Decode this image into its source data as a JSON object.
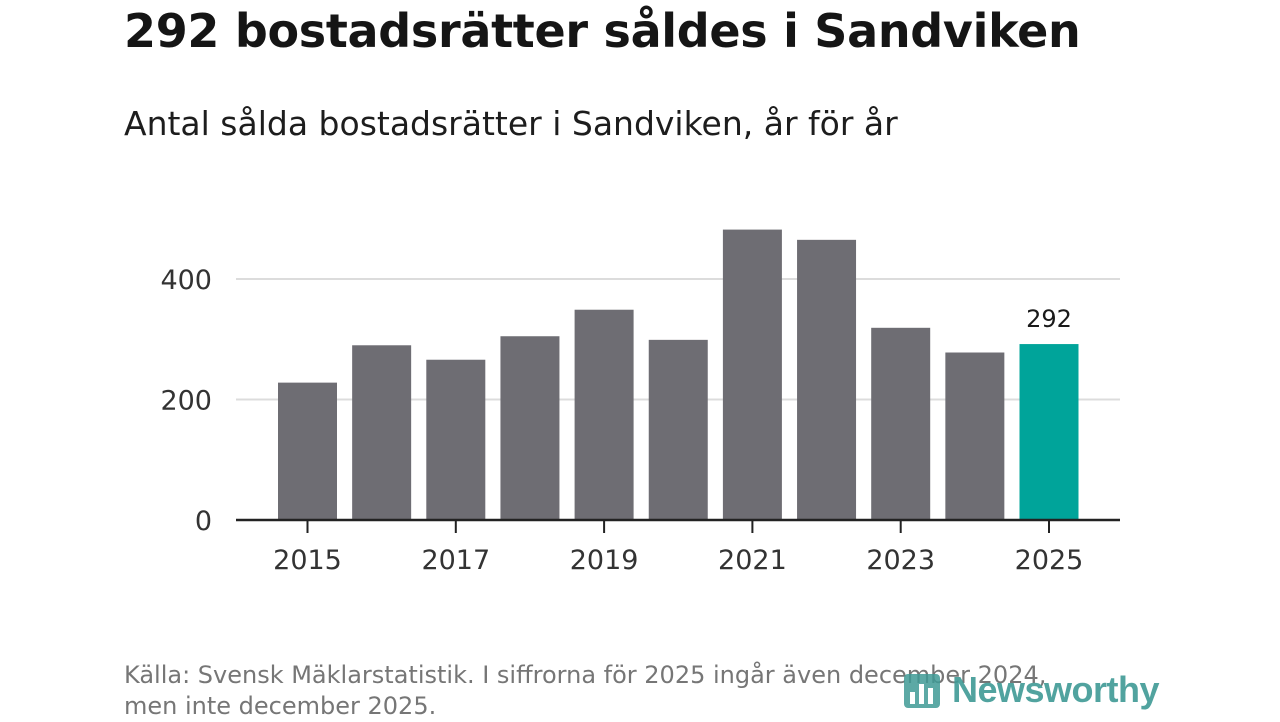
{
  "header": {
    "title": "292 bostadsrätter såldes i Sandviken",
    "subtitle": "Antal sålda bostadsrätter i Sandviken, år för år"
  },
  "footer": {
    "source_line1": "Källa: Svensk Mäklarstatistik. I siffrorna för 2025 ingår även december 2024,",
    "source_line2": "men inte december 2025.",
    "brand": "Newsworthy",
    "brand_icon": "bar-chart-icon"
  },
  "colors": {
    "bar": "#6e6d73",
    "highlight": "#00a49a",
    "grid": "#dcdcdc",
    "axis": "#222222"
  },
  "chart_data": {
    "type": "bar",
    "title": "Antal sålda bostadsrätter i Sandviken, år för år",
    "categories": [
      "2015",
      "2016",
      "2017",
      "2018",
      "2019",
      "2020",
      "2021",
      "2022",
      "2023",
      "2024",
      "2025"
    ],
    "values": [
      228,
      290,
      266,
      305,
      349,
      299,
      482,
      465,
      319,
      278,
      292
    ],
    "highlight_index": 10,
    "highlight_label": "292",
    "x_tick_labels": [
      "2015",
      "2017",
      "2019",
      "2021",
      "2023",
      "2025"
    ],
    "y_ticks": [
      0,
      200,
      400
    ],
    "y_tick_labels": [
      "0",
      "200",
      "400"
    ],
    "ylim": [
      0,
      500
    ],
    "xlabel": "",
    "ylabel": "",
    "grid": true
  }
}
